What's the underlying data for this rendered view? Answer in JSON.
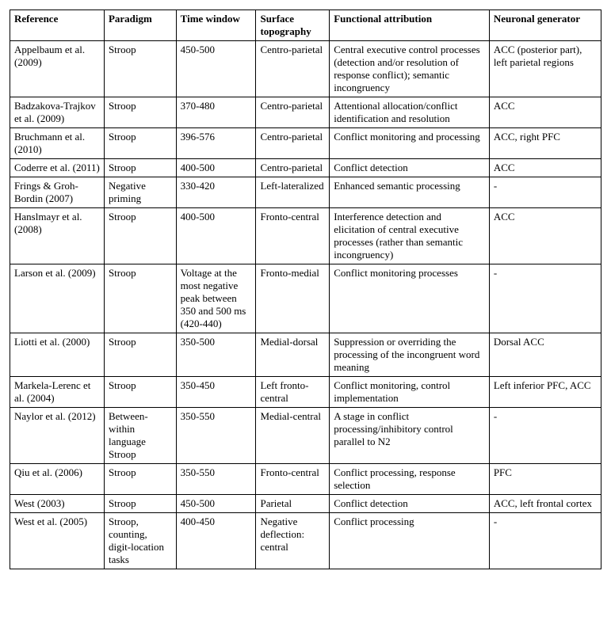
{
  "columns": [
    "Reference",
    "Paradigm",
    "Time window",
    "Surface topography",
    "Functional attribution",
    "Neuronal generator"
  ],
  "rows": [
    {
      "reference": "Appelbaum et al. (2009)",
      "paradigm": "Stroop",
      "time_window": "450-500",
      "surface": "Centro-parietal",
      "functional": "Central executive control processes (detection and/or resolution of response conflict); semantic incongruency",
      "neuronal": "ACC (posterior part), left parietal regions"
    },
    {
      "reference": "Badzakova-Trajkov et al. (2009)",
      "paradigm": "Stroop",
      "time_window": "370-480",
      "surface": "Centro-parietal",
      "functional": "Attentional allocation/conflict identification and resolution",
      "neuronal": "ACC"
    },
    {
      "reference": "Bruchmann et al. (2010)",
      "paradigm": "Stroop",
      "time_window": "396-576",
      "surface": "Centro-parietal",
      "functional": "Conflict monitoring and processing",
      "neuronal": "ACC, right PFC"
    },
    {
      "reference": "Coderre et al. (2011)",
      "paradigm": "Stroop",
      "time_window": "400-500",
      "surface": "Centro-parietal",
      "functional": "Conflict detection",
      "neuronal": "ACC"
    },
    {
      "reference": "Frings & Groh-Bordin (2007)",
      "paradigm": "Negative priming",
      "time_window": "330-420",
      "surface": "Left-lateralized",
      "functional": "Enhanced semantic processing",
      "neuronal": "-"
    },
    {
      "reference": "Hanslmayr et al. (2008)",
      "paradigm": "Stroop",
      "time_window": "400-500",
      "surface": "Fronto-central",
      "functional": "Interference detection and elicitation of central executive processes (rather than semantic incongruency)",
      "neuronal": "ACC"
    },
    {
      "reference": "Larson et al. (2009)",
      "paradigm": "Stroop",
      "time_window": "Voltage at the most negative peak between 350 and 500 ms (420-440)",
      "surface": "Fronto-medial",
      "functional": "Conflict monitoring processes",
      "neuronal": "-"
    },
    {
      "reference": "Liotti et al. (2000)",
      "paradigm": "Stroop",
      "time_window": "350-500",
      "surface": "Medial-dorsal",
      "functional": "Suppression or overriding the processing of the incongruent word meaning",
      "neuronal": "Dorsal ACC"
    },
    {
      "reference": "Markela-Lerenc et al. (2004)",
      "paradigm": "Stroop",
      "time_window": "350-450",
      "surface": "Left fronto-central",
      "functional": "Conflict monitoring, control implementation",
      "neuronal": "Left inferior PFC, ACC"
    },
    {
      "reference": "Naylor et al. (2012)",
      "paradigm": "Between-within language Stroop",
      "time_window": "350-550",
      "surface": "Medial-central",
      "functional": "A stage in conflict processing/inhibitory control parallel to N2",
      "neuronal": "-"
    },
    {
      "reference": "Qiu et al. (2006)",
      "paradigm": "Stroop",
      "time_window": "350-550",
      "surface": "Fronto-central",
      "functional": "Conflict processing, response selection",
      "neuronal": "PFC"
    },
    {
      "reference": "West (2003)",
      "paradigm": "Stroop",
      "time_window": "450-500",
      "surface": "Parietal",
      "functional": "Conflict detection",
      "neuronal": "ACC, left frontal cortex"
    },
    {
      "reference": "West et al. (2005)",
      "paradigm": "Stroop, counting, digit-location tasks",
      "time_window": "400-450",
      "surface": "Negative deflection: central",
      "functional": "Conflict processing",
      "neuronal": "-"
    }
  ]
}
